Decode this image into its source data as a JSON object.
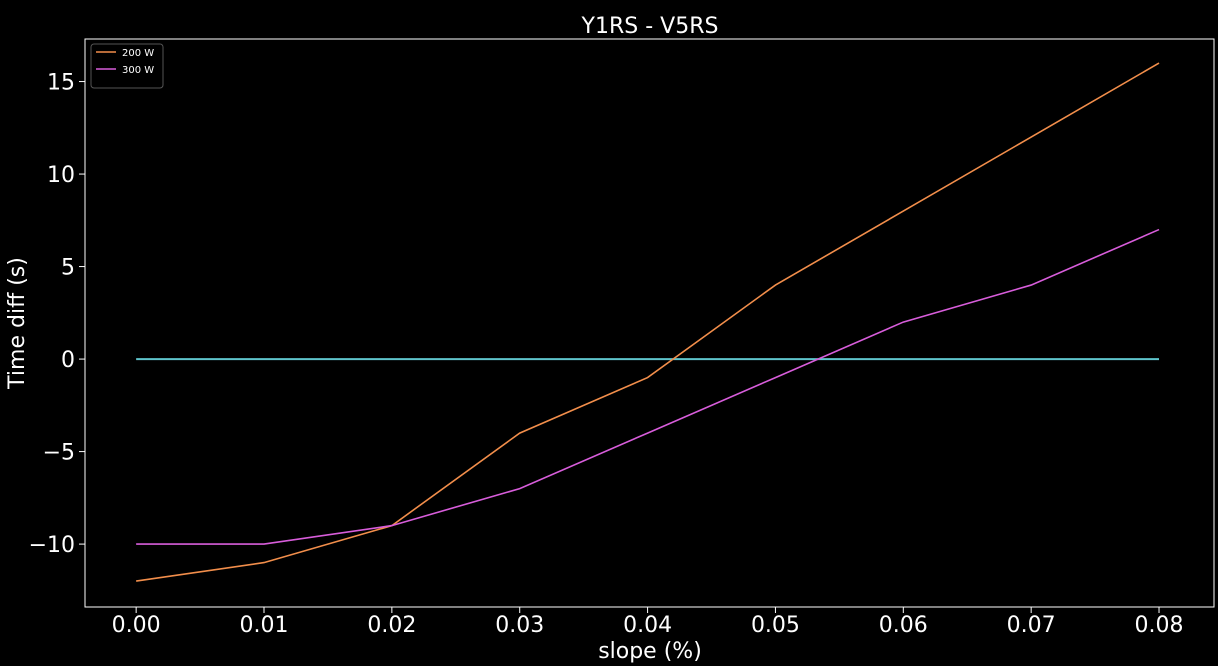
{
  "chart_data": {
    "type": "line",
    "title": "Y1RS - V5RS",
    "xlabel": "slope (%)",
    "ylabel": "Time diff (s)",
    "x": [
      0.0,
      0.01,
      0.02,
      0.03,
      0.04,
      0.05,
      0.06,
      0.07,
      0.08
    ],
    "x_ticks": [
      "0.00",
      "0.01",
      "0.02",
      "0.03",
      "0.04",
      "0.05",
      "0.06",
      "0.07",
      "0.08"
    ],
    "y_ticks": [
      {
        "value": -10,
        "label": "−10"
      },
      {
        "value": -5,
        "label": "−5"
      },
      {
        "value": 0,
        "label": "0"
      },
      {
        "value": 5,
        "label": "5"
      },
      {
        "value": 10,
        "label": "10"
      },
      {
        "value": 15,
        "label": "15"
      }
    ],
    "xlim": [
      -0.004,
      0.0843
    ],
    "ylim": [
      -13.4,
      17.3
    ],
    "grid": false,
    "legend_position": "top-left",
    "series": [
      {
        "name": "200 W",
        "color": "#f28e4b",
        "values": [
          -12,
          -11,
          -9,
          -4,
          -1,
          4,
          8,
          12,
          16
        ]
      },
      {
        "name": "300 W",
        "color": "#d85ddb",
        "values": [
          -10,
          -10,
          -9,
          -7,
          -4,
          -1,
          2,
          4,
          7
        ]
      }
    ],
    "reference_line": {
      "y": 0,
      "color": "#5ec4cc"
    }
  }
}
